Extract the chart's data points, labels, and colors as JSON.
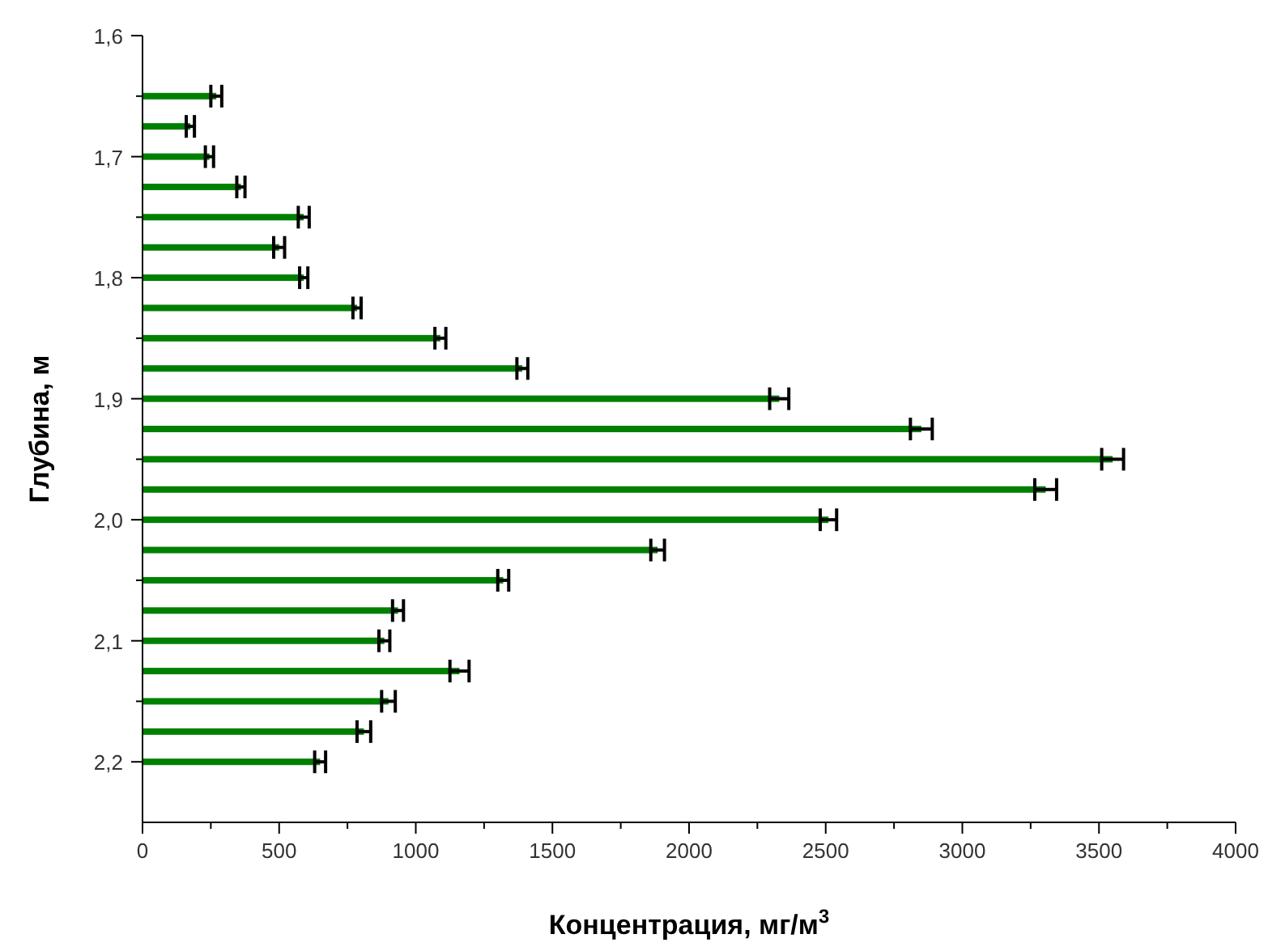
{
  "chart_data": {
    "type": "bar",
    "orientation": "horizontal",
    "xlabel": "Концентрация, мг/м$^{3}$",
    "ylabel": "Глубина, м",
    "x": [
      1.65,
      1.675,
      1.7,
      1.725,
      1.75,
      1.775,
      1.8,
      1.825,
      1.85,
      1.875,
      1.9,
      1.925,
      1.95,
      1.975,
      2.0,
      2.025,
      2.05,
      2.075,
      2.1,
      2.125,
      2.15,
      2.175,
      2.2
    ],
    "values": [
      270,
      175,
      245,
      360,
      590,
      500,
      590,
      785,
      1090,
      1390,
      2330,
      2850,
      3550,
      3305,
      2510,
      1885,
      1320,
      935,
      885,
      1160,
      900,
      810,
      650
    ],
    "errors": [
      20,
      15,
      15,
      15,
      20,
      20,
      15,
      15,
      20,
      20,
      35,
      40,
      40,
      40,
      30,
      25,
      20,
      20,
      20,
      35,
      25,
      25,
      20
    ],
    "color": "#008000",
    "xlim": [
      0,
      4000
    ],
    "xticks": [
      0,
      {
        "value": 250,
        "label": null
      },
      500,
      {
        "value": 750,
        "label": null
      },
      1000,
      {
        "value": 1250,
        "label": null
      },
      1500,
      {
        "value": 1750,
        "label": null
      },
      2000,
      {
        "value": 2250,
        "label": null
      },
      2500,
      {
        "value": 2750,
        "label": null
      },
      3000,
      {
        "value": 3250,
        "label": null
      },
      3500,
      {
        "value": 3750,
        "label": null
      },
      4000
    ],
    "ylim": [
      2.25,
      1.6
    ],
    "yticks": [
      {
        "value": 1.6,
        "label": "1,6"
      },
      {
        "value": 1.65,
        "label": null
      },
      {
        "value": 1.7,
        "label": "1,7"
      },
      {
        "value": 1.75,
        "label": null
      },
      {
        "value": 1.8,
        "label": "1,8"
      },
      {
        "value": 1.85,
        "label": null
      },
      {
        "value": 1.9,
        "label": "1,9"
      },
      {
        "value": 1.95,
        "label": null
      },
      {
        "value": 2.0,
        "label": "2,0"
      },
      {
        "value": 2.05,
        "label": null
      },
      {
        "value": 2.1,
        "label": "2,1"
      },
      {
        "value": 2.15,
        "label": null
      },
      {
        "value": 2.2,
        "label": "2,2"
      }
    ],
    "grid": false
  }
}
